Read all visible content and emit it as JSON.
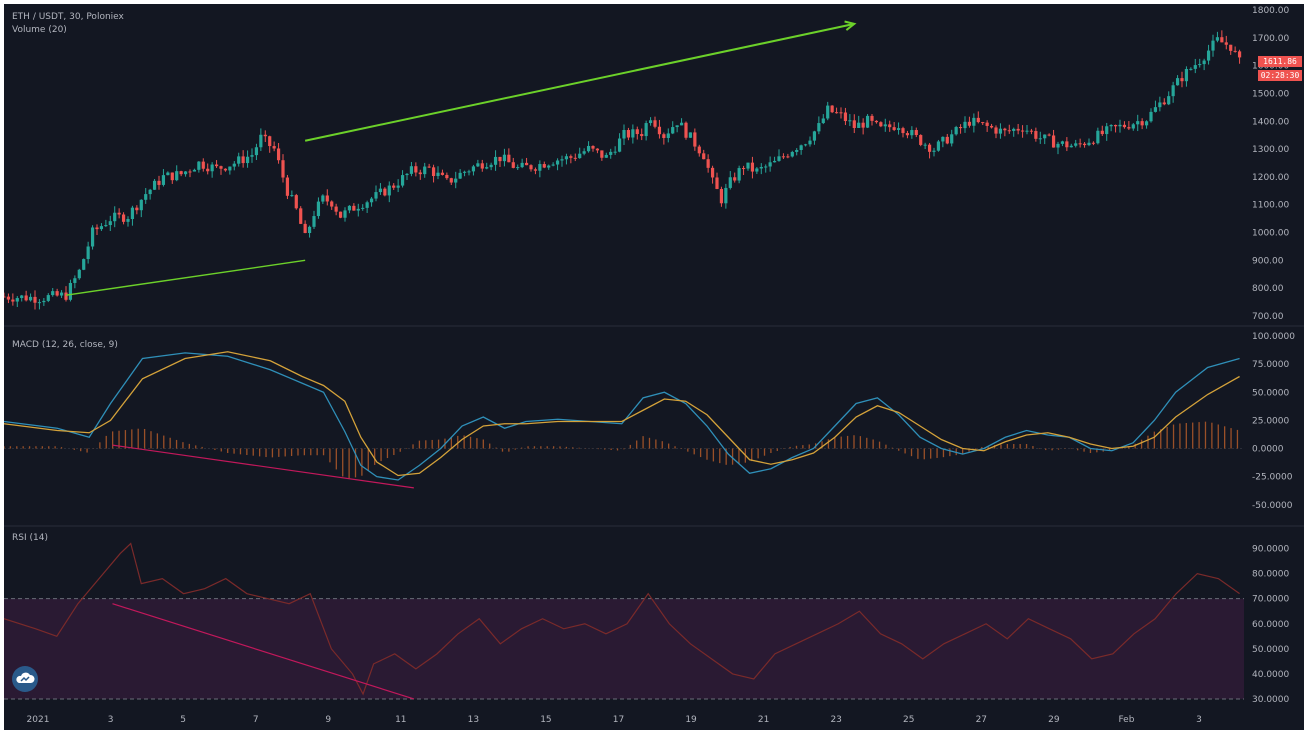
{
  "legend": {
    "symbol": "ETH / USDT, 30, Poloniex",
    "volume": "Volume (20)",
    "macd": "MACD (12, 26, close, 9)",
    "rsi": "RSI (14)"
  },
  "price_tags": {
    "last_price": "1611.86",
    "countdown": "02:28:30"
  },
  "colors": {
    "background": "#131722",
    "up_candle": "#26a69a",
    "down_candle": "#ef5350",
    "trend_up": "#6cd12a",
    "divergence": "#c2185b",
    "macd_line": "#2f8fb8",
    "signal_line": "#d4a23a",
    "histogram": "#b25a2a",
    "rsi_line": "#7a2a2a",
    "rsi_band": "#2a1a33"
  },
  "chart_data": [
    {
      "type": "candlestick",
      "panel": "price",
      "yticks": [
        "1800.00",
        "1700.00",
        "1600.00",
        "1500.00",
        "1400.00",
        "1300.00",
        "1200.00",
        "1100.00",
        "1000.00",
        "900.00",
        "800.00",
        "700.00"
      ],
      "ylim": [
        700,
        1800
      ],
      "x_ticks": [
        "2021",
        "3",
        "5",
        "7",
        "9",
        "11",
        "13",
        "15",
        "17",
        "19",
        "21",
        "23",
        "25",
        "27",
        "29",
        "Feb",
        "3"
      ],
      "x_index_range": [
        0,
        205
      ],
      "trend_lines": [
        {
          "from": [
            14,
            775
          ],
          "to": [
            68,
            900
          ],
          "label": ""
        },
        {
          "from": [
            68,
            1330
          ],
          "to": [
            192,
            1750
          ],
          "label": "",
          "arrow": true
        }
      ],
      "close_path": [
        [
          0,
          770
        ],
        [
          8,
          765
        ],
        [
          14,
          775
        ],
        [
          17,
          860
        ],
        [
          20,
          1000
        ],
        [
          24,
          1050
        ],
        [
          28,
          1060
        ],
        [
          32,
          1140
        ],
        [
          36,
          1200
        ],
        [
          40,
          1210
        ],
        [
          44,
          1250
        ],
        [
          48,
          1230
        ],
        [
          52,
          1250
        ],
        [
          56,
          1280
        ],
        [
          58,
          1340
        ],
        [
          61,
          1300
        ],
        [
          64,
          1150
        ],
        [
          66,
          1080
        ],
        [
          68,
          980
        ],
        [
          70,
          1070
        ],
        [
          72,
          1120
        ],
        [
          74,
          1110
        ],
        [
          76,
          1060
        ],
        [
          78,
          1080
        ],
        [
          80,
          1100
        ],
        [
          84,
          1130
        ],
        [
          88,
          1170
        ],
        [
          92,
          1220
        ],
        [
          96,
          1230
        ],
        [
          100,
          1180
        ],
        [
          104,
          1220
        ],
        [
          108,
          1250
        ],
        [
          112,
          1270
        ],
        [
          116,
          1230
        ],
        [
          120,
          1240
        ],
        [
          124,
          1260
        ],
        [
          128,
          1270
        ],
        [
          132,
          1300
        ],
        [
          136,
          1270
        ],
        [
          140,
          1350
        ],
        [
          144,
          1360
        ],
        [
          146,
          1420
        ],
        [
          149,
          1350
        ],
        [
          152,
          1400
        ],
        [
          155,
          1340
        ],
        [
          158,
          1280
        ],
        [
          160,
          1180
        ],
        [
          162,
          1120
        ],
        [
          164,
          1180
        ],
        [
          167,
          1240
        ],
        [
          170,
          1220
        ],
        [
          174,
          1250
        ],
        [
          178,
          1300
        ],
        [
          181,
          1330
        ],
        [
          184,
          1380
        ],
        [
          186,
          1440
        ],
        [
          189,
          1420
        ],
        [
          192,
          1380
        ],
        [
          195,
          1400
        ],
        [
          198,
          1370
        ],
        [
          202,
          1390
        ],
        [
          206,
          1340
        ],
        [
          210,
          1300
        ],
        [
          214,
          1350
        ],
        [
          218,
          1400
        ],
        [
          222,
          1380
        ],
        [
          226,
          1360
        ],
        [
          230,
          1380
        ],
        [
          234,
          1340
        ],
        [
          238,
          1320
        ],
        [
          242,
          1310
        ],
        [
          246,
          1340
        ],
        [
          250,
          1370
        ],
        [
          254,
          1390
        ],
        [
          258,
          1410
        ],
        [
          262,
          1480
        ],
        [
          266,
          1560
        ],
        [
          270,
          1620
        ],
        [
          274,
          1690
        ],
        [
          277,
          1670
        ],
        [
          279,
          1611
        ]
      ]
    },
    {
      "type": "line",
      "panel": "macd",
      "yticks": [
        "100.0000",
        "75.0000",
        "50.0000",
        "25.0000",
        "0.0000",
        "-25.0000",
        "-50.0000"
      ],
      "ylim": [
        -60,
        100
      ],
      "series": [
        {
          "name": "",
          "role": "macd",
          "points": [
            [
              0,
              24
            ],
            [
              10,
              18
            ],
            [
              16,
              10
            ],
            [
              20,
              40
            ],
            [
              26,
              80
            ],
            [
              34,
              85
            ],
            [
              42,
              82
            ],
            [
              50,
              70
            ],
            [
              56,
              58
            ],
            [
              60,
              50
            ],
            [
              64,
              15
            ],
            [
              67,
              -15
            ],
            [
              70,
              -25
            ],
            [
              74,
              -28
            ],
            [
              78,
              -15
            ],
            [
              82,
              0
            ],
            [
              86,
              20
            ],
            [
              90,
              28
            ],
            [
              94,
              18
            ],
            [
              98,
              24
            ],
            [
              104,
              26
            ],
            [
              110,
              24
            ],
            [
              116,
              22
            ],
            [
              120,
              45
            ],
            [
              124,
              50
            ],
            [
              128,
              40
            ],
            [
              132,
              20
            ],
            [
              136,
              -5
            ],
            [
              140,
              -22
            ],
            [
              144,
              -18
            ],
            [
              148,
              -8
            ],
            [
              152,
              0
            ],
            [
              156,
              20
            ],
            [
              160,
              40
            ],
            [
              164,
              45
            ],
            [
              168,
              30
            ],
            [
              172,
              10
            ],
            [
              176,
              0
            ],
            [
              180,
              -5
            ],
            [
              184,
              0
            ],
            [
              188,
              10
            ],
            [
              192,
              16
            ],
            [
              196,
              12
            ],
            [
              200,
              10
            ],
            [
              204,
              0
            ],
            [
              208,
              -2
            ],
            [
              212,
              5
            ],
            [
              216,
              25
            ],
            [
              220,
              50
            ],
            [
              226,
              72
            ],
            [
              232,
              80
            ]
          ]
        },
        {
          "name": "",
          "role": "signal",
          "points": [
            [
              0,
              22
            ],
            [
              10,
              16
            ],
            [
              16,
              14
            ],
            [
              20,
              25
            ],
            [
              26,
              62
            ],
            [
              34,
              80
            ],
            [
              42,
              86
            ],
            [
              50,
              78
            ],
            [
              56,
              64
            ],
            [
              60,
              56
            ],
            [
              64,
              42
            ],
            [
              67,
              10
            ],
            [
              70,
              -12
            ],
            [
              74,
              -24
            ],
            [
              78,
              -22
            ],
            [
              82,
              -8
            ],
            [
              86,
              8
            ],
            [
              90,
              20
            ],
            [
              94,
              22
            ],
            [
              98,
              22
            ],
            [
              104,
              24
            ],
            [
              110,
              24
            ],
            [
              116,
              24
            ],
            [
              120,
              34
            ],
            [
              124,
              44
            ],
            [
              128,
              42
            ],
            [
              132,
              30
            ],
            [
              136,
              10
            ],
            [
              140,
              -10
            ],
            [
              144,
              -14
            ],
            [
              148,
              -10
            ],
            [
              152,
              -4
            ],
            [
              156,
              10
            ],
            [
              160,
              28
            ],
            [
              164,
              38
            ],
            [
              168,
              32
            ],
            [
              172,
              20
            ],
            [
              176,
              8
            ],
            [
              180,
              0
            ],
            [
              184,
              -2
            ],
            [
              188,
              6
            ],
            [
              192,
              12
            ],
            [
              196,
              14
            ],
            [
              200,
              10
            ],
            [
              204,
              4
            ],
            [
              208,
              0
            ],
            [
              212,
              2
            ],
            [
              216,
              10
            ],
            [
              220,
              28
            ],
            [
              226,
              48
            ],
            [
              232,
              64
            ]
          ]
        }
      ],
      "divergence_line": {
        "from": [
          18,
          3
        ],
        "to": [
          68,
          -35
        ]
      }
    },
    {
      "type": "line",
      "panel": "rsi",
      "yticks": [
        "90.0000",
        "80.0000",
        "70.0000",
        "60.0000",
        "50.0000",
        "40.0000",
        "30.0000"
      ],
      "ylim": [
        28,
        95
      ],
      "band": [
        30,
        70
      ],
      "series": [
        {
          "name": "",
          "points": [
            [
              0,
              62
            ],
            [
              6,
              58
            ],
            [
              10,
              55
            ],
            [
              14,
              68
            ],
            [
              18,
              78
            ],
            [
              22,
              88
            ],
            [
              24,
              92
            ],
            [
              26,
              76
            ],
            [
              30,
              78
            ],
            [
              34,
              72
            ],
            [
              38,
              74
            ],
            [
              42,
              78
            ],
            [
              46,
              72
            ],
            [
              50,
              70
            ],
            [
              54,
              68
            ],
            [
              58,
              72
            ],
            [
              62,
              50
            ],
            [
              66,
              40
            ],
            [
              68,
              32
            ],
            [
              70,
              44
            ],
            [
              74,
              48
            ],
            [
              78,
              42
            ],
            [
              82,
              48
            ],
            [
              86,
              56
            ],
            [
              90,
              62
            ],
            [
              94,
              52
            ],
            [
              98,
              58
            ],
            [
              102,
              62
            ],
            [
              106,
              58
            ],
            [
              110,
              60
            ],
            [
              114,
              56
            ],
            [
              118,
              60
            ],
            [
              122,
              72
            ],
            [
              126,
              60
            ],
            [
              130,
              52
            ],
            [
              134,
              46
            ],
            [
              138,
              40
            ],
            [
              142,
              38
            ],
            [
              146,
              48
            ],
            [
              150,
              52
            ],
            [
              154,
              56
            ],
            [
              158,
              60
            ],
            [
              162,
              65
            ],
            [
              166,
              56
            ],
            [
              170,
              52
            ],
            [
              174,
              46
            ],
            [
              178,
              52
            ],
            [
              182,
              56
            ],
            [
              186,
              60
            ],
            [
              190,
              54
            ],
            [
              194,
              62
            ],
            [
              198,
              58
            ],
            [
              202,
              54
            ],
            [
              206,
              46
            ],
            [
              210,
              48
            ],
            [
              214,
              56
            ],
            [
              218,
              62
            ],
            [
              222,
              72
            ],
            [
              226,
              80
            ],
            [
              230,
              78
            ],
            [
              234,
              72
            ]
          ]
        }
      ],
      "divergence_line": {
        "from": [
          18,
          68
        ],
        "to": [
          68,
          30
        ]
      }
    }
  ]
}
